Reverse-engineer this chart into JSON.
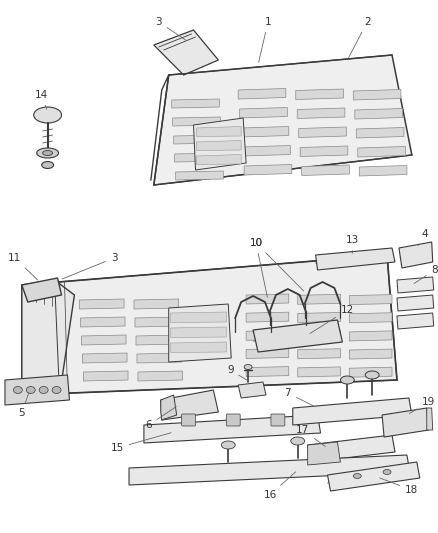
{
  "bg_color": "#ffffff",
  "line_color": "#3a3a3a",
  "fill_color": "#f0f0f0",
  "fill_dark": "#d8d8d8",
  "fill_mid": "#e5e5e5",
  "fig_width": 4.38,
  "fig_height": 5.33,
  "dpi": 100,
  "font_size": 7.5,
  "text_color": "#333333",
  "leader_color": "#666666"
}
